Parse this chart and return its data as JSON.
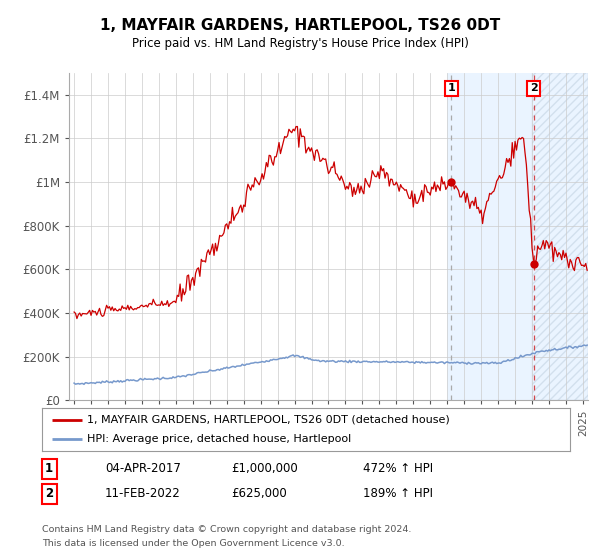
{
  "title": "1, MAYFAIR GARDENS, HARTLEPOOL, TS26 0DT",
  "subtitle": "Price paid vs. HM Land Registry's House Price Index (HPI)",
  "ylabel_ticks": [
    "£0",
    "£200K",
    "£400K",
    "£600K",
    "£800K",
    "£1M",
    "£1.2M",
    "£1.4M"
  ],
  "ytick_values": [
    0,
    200000,
    400000,
    600000,
    800000,
    1000000,
    1200000,
    1400000
  ],
  "ylim": [
    0,
    1500000
  ],
  "xlim_start": 1994.7,
  "xlim_end": 2025.3,
  "red_line_color": "#cc0000",
  "blue_line_color": "#7799cc",
  "marker1_date": 2017.25,
  "marker1_value": 1000000,
  "marker2_date": 2022.1,
  "marker2_value": 625000,
  "marker1_label": "1",
  "marker2_label": "2",
  "annotation1_date": "04-APR-2017",
  "annotation1_price": "£1,000,000",
  "annotation1_hpi": "472% ↑ HPI",
  "annotation2_date": "11-FEB-2022",
  "annotation2_price": "£625,000",
  "annotation2_hpi": "189% ↑ HPI",
  "legend_label1": "1, MAYFAIR GARDENS, HARTLEPOOL, TS26 0DT (detached house)",
  "legend_label2": "HPI: Average price, detached house, Hartlepool",
  "footer1": "Contains HM Land Registry data © Crown copyright and database right 2024.",
  "footer2": "This data is licensed under the Open Government Licence v3.0.",
  "plot_bg_color": "#ffffff",
  "grid_color": "#cccccc",
  "shade_color": "#ddeeff",
  "hatch_color": "#ccddee"
}
